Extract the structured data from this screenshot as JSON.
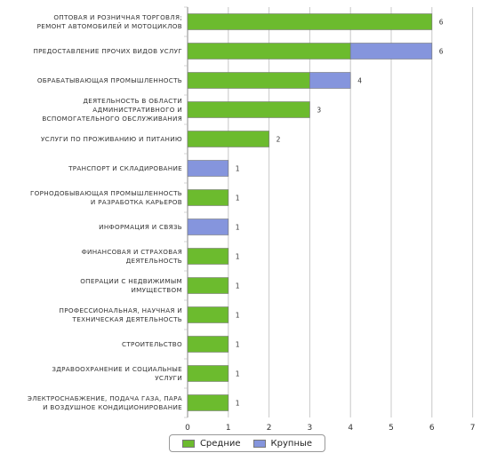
{
  "chart_data": {
    "type": "bar",
    "orientation": "horizontal",
    "stacked": true,
    "categories": [
      [
        "ОПТОВАЯ И РОЗНИЧНАЯ ТОРГОВЛЯ;",
        "РЕМОНТ АВТОМОБИЛЕЙ И МОТОЦИКЛОВ"
      ],
      [
        "ПРЕДОСТАВЛЕНИЕ ПРОЧИХ ВИДОВ УСЛУГ"
      ],
      [
        "ОБРАБАТЫВАЮЩАЯ ПРОМЫШЛЕННОСТЬ"
      ],
      [
        "ДЕЯТЕЛЬНОСТЬ В ОБЛАСТИ",
        "АДМИНИСТРАТИВНОГО И",
        "ВСПОМОГАТЕЛЬНОГО ОБСЛУЖИВАНИЯ"
      ],
      [
        "УСЛУГИ ПО ПРОЖИВАНИЮ И ПИТАНИЮ"
      ],
      [
        "ТРАНСПОРТ И СКЛАДИРОВАНИЕ"
      ],
      [
        "ГОРНОДОБЫВАЮЩАЯ ПРОМЫШЛЕННОСТЬ",
        "И РАЗРАБОТКА КАРЬЕРОВ"
      ],
      [
        "ИНФОРМАЦИЯ И СВЯЗЬ"
      ],
      [
        "ФИНАНСОВАЯ И СТРАХОВАЯ",
        "ДЕЯТЕЛЬНОСТЬ"
      ],
      [
        "ОПЕРАЦИИ С НЕДВИЖИМЫМ",
        "ИМУЩЕСТВОМ"
      ],
      [
        "ПРОФЕССИОНАЛЬНАЯ, НАУЧНАЯ И",
        "ТЕХНИЧЕСКАЯ ДЕЯТЕЛЬНОСТЬ"
      ],
      [
        "СТРОИТЕЛЬСТВО"
      ],
      [
        "ЗДРАВООХРАНЕНИЕ И СОЦИАЛЬНЫЕ",
        "УСЛУГИ"
      ],
      [
        "ЭЛЕКТРОСНАБЖЕНИЕ, ПОДАЧА ГАЗА, ПАРА",
        "И ВОЗДУШНОЕ КОНДИЦИОНИРОВАНИЕ"
      ]
    ],
    "series": [
      {
        "name": "Средние",
        "color": "#6cbb2e",
        "values": [
          6,
          4,
          3,
          3,
          2,
          0,
          1,
          0,
          1,
          1,
          1,
          1,
          1,
          1
        ]
      },
      {
        "name": "Крупные",
        "color": "#8595dd",
        "values": [
          0,
          2,
          1,
          0,
          0,
          1,
          0,
          1,
          0,
          0,
          0,
          0,
          0,
          0
        ]
      }
    ],
    "totals": [
      "6",
      "6",
      "4",
      "3",
      "2",
      "1",
      "1",
      "1",
      "1",
      "1",
      "1",
      "1",
      "1",
      "1"
    ],
    "xticks": [
      "0",
      "1",
      "2",
      "3",
      "4",
      "5",
      "6",
      "7"
    ],
    "xlim": [
      0,
      7
    ],
    "grid": true,
    "legend_position": "bottom"
  }
}
